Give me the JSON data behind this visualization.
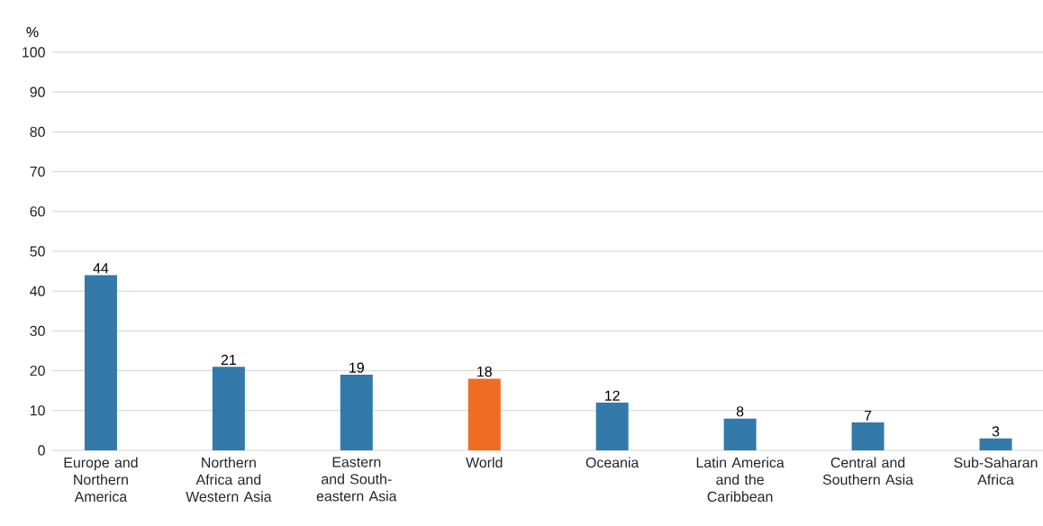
{
  "chart_data": {
    "type": "bar",
    "ylabel": "%",
    "categories": [
      "Europe and Northern America",
      "Northern Africa and Western Asia",
      "Eastern and South-eastern Asia",
      "World",
      "Oceania",
      "Latin America and the Caribbean",
      "Central and Southern Asia",
      "Sub-Saharan Africa"
    ],
    "values": [
      44,
      21,
      19,
      18,
      12,
      8,
      7,
      3
    ],
    "colors": [
      "#337aaa",
      "#337aaa",
      "#337aaa",
      "#ef6c22",
      "#337aaa",
      "#337aaa",
      "#337aaa",
      "#337aaa"
    ],
    "ylim": [
      0,
      100
    ],
    "yticks": [
      0,
      10,
      20,
      30,
      40,
      50,
      60,
      70,
      80,
      90,
      100
    ],
    "grid": "y",
    "data_labels": true
  }
}
